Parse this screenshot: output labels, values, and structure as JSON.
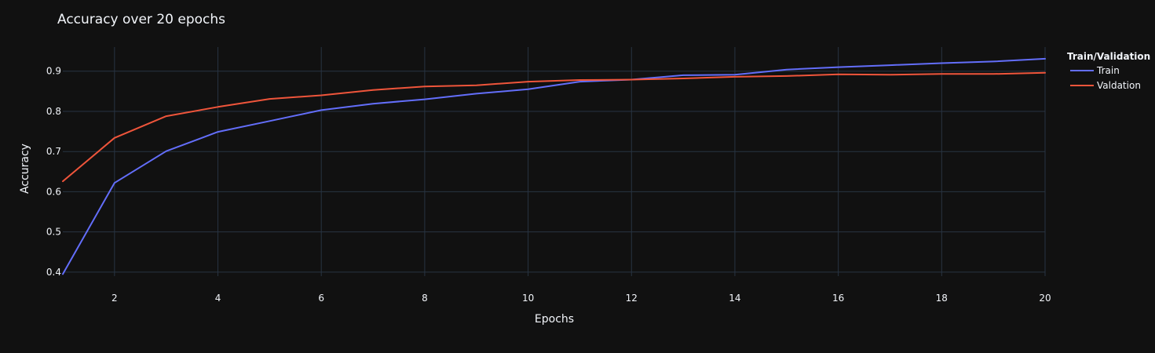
{
  "chart_data": {
    "type": "line",
    "title": "Accuracy over 20 epochs",
    "xlabel": "Epochs",
    "ylabel": "Accuracy",
    "xlim": [
      1,
      20
    ],
    "ylim": [
      0.39,
      0.96
    ],
    "x_ticks": [
      2,
      4,
      6,
      8,
      10,
      12,
      14,
      16,
      18,
      20
    ],
    "y_ticks": [
      0.4,
      0.5,
      0.6,
      0.7,
      0.8,
      0.9
    ],
    "grid": true,
    "legend_title": "Train/Validation",
    "legend_position": "top-right",
    "x": [
      1,
      2,
      3,
      4,
      5,
      6,
      7,
      8,
      9,
      10,
      11,
      12,
      13,
      14,
      15,
      16,
      17,
      18,
      19,
      20
    ],
    "series": [
      {
        "name": "Train",
        "color": "#636efa",
        "values": [
          0.395,
          0.622,
          0.701,
          0.749,
          0.776,
          0.803,
          0.819,
          0.83,
          0.844,
          0.855,
          0.874,
          0.879,
          0.89,
          0.891,
          0.904,
          0.91,
          0.915,
          0.92,
          0.924,
          0.931
        ]
      },
      {
        "name": "Valdation",
        "color": "#ef553b",
        "values": [
          0.626,
          0.734,
          0.788,
          0.811,
          0.831,
          0.84,
          0.853,
          0.862,
          0.865,
          0.874,
          0.878,
          0.879,
          0.882,
          0.886,
          0.888,
          0.892,
          0.891,
          0.893,
          0.893,
          0.896
        ]
      }
    ]
  }
}
